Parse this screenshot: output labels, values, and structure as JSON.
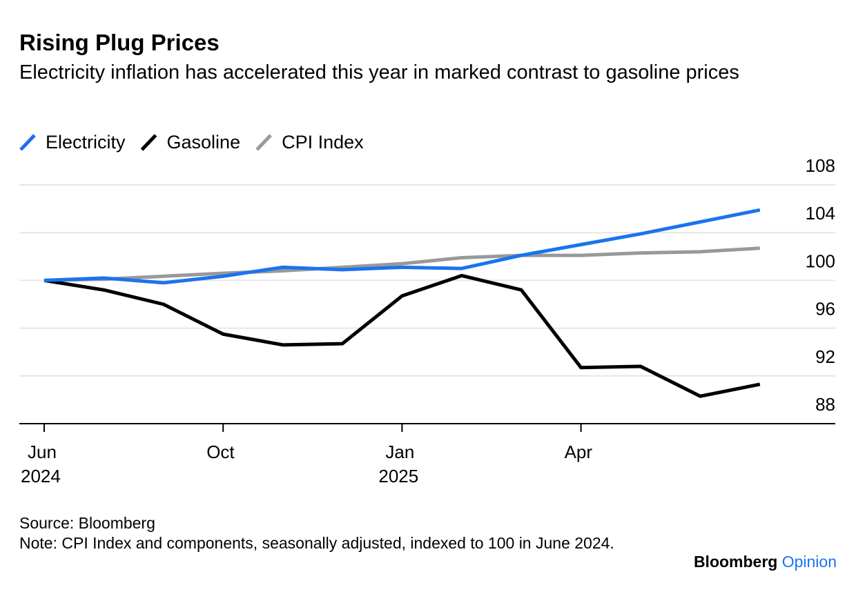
{
  "chart_data": {
    "type": "line",
    "title": "Rising Plug Prices",
    "subtitle": "Electricity inflation has accelerated this year in marked contrast to gasoline prices",
    "categories": [
      "Jun 2024",
      null,
      null,
      "Oct",
      null,
      null,
      "Jan 2025",
      null,
      null,
      "Apr",
      null,
      null,
      null
    ],
    "series": [
      {
        "name": "Electricity",
        "color": "#1a73f0",
        "values": [
          100,
          100.2,
          99.8,
          100.35,
          101.1,
          100.9,
          101.1,
          101.0,
          102.1,
          103.0,
          103.9,
          104.9,
          105.9
        ]
      },
      {
        "name": "Gasoline",
        "color": "#000000",
        "values": [
          100,
          99.2,
          98.0,
          95.5,
          94.6,
          94.7,
          98.7,
          100.4,
          99.2,
          92.7,
          92.8,
          90.3,
          91.3
        ]
      },
      {
        "name": "CPI Index",
        "color": "#999999",
        "values": [
          100,
          100.1,
          100.35,
          100.6,
          100.8,
          101.1,
          101.4,
          101.9,
          102.1,
          102.1,
          102.3,
          102.4,
          102.7
        ]
      }
    ],
    "ylim": [
      88,
      108
    ],
    "yticks": [
      88,
      92,
      96,
      100,
      104,
      108
    ],
    "grid": true,
    "source": "Source: Bloomberg",
    "note": "Note: CPI Index and components, seasonally adjusted, indexed to 100 in June 2024.",
    "brand": "Bloomberg",
    "brand_suffix": "Opinion"
  }
}
